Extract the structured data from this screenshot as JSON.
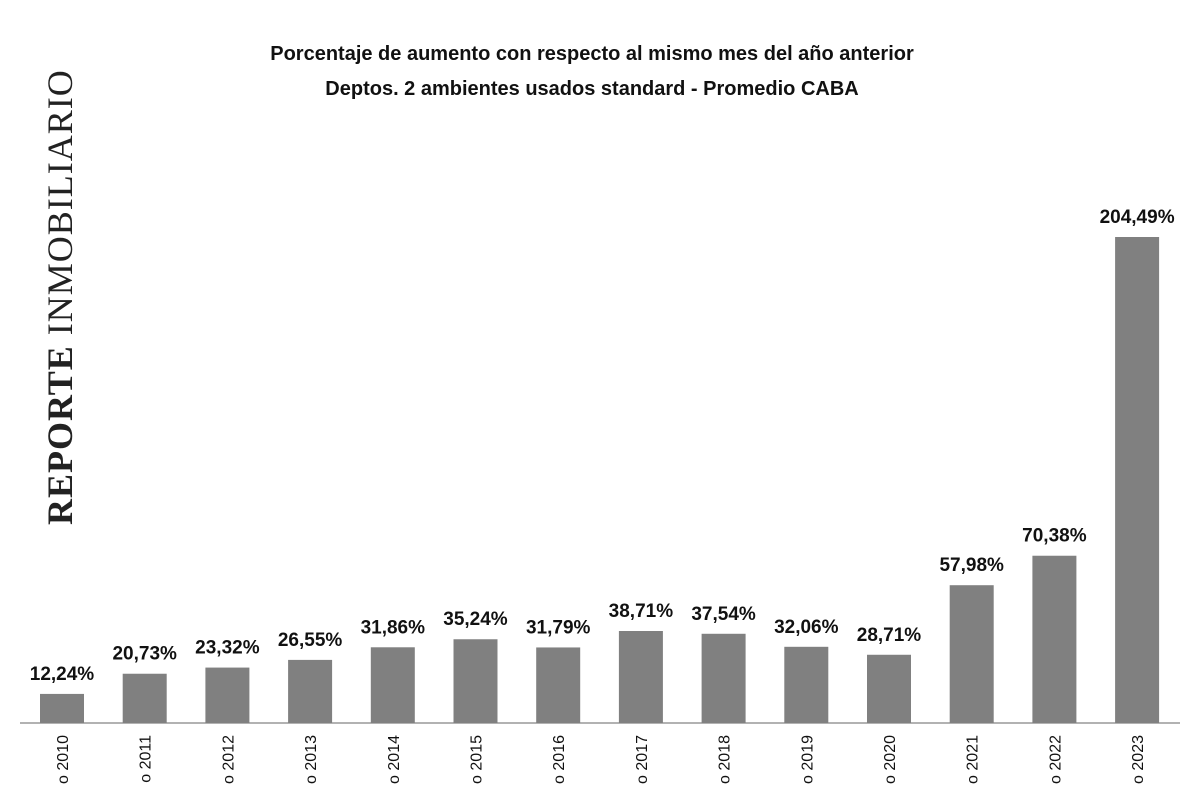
{
  "chart_data": {
    "type": "bar",
    "title": [
      "Porcentaje de aumento con respecto al mismo mes del año anterior",
      "Deptos. 2 ambientes usados standard - Promedio CABA"
    ],
    "watermark": [
      "REPORTE",
      "INMOBILIARIO"
    ],
    "categories": [
      "o 2010",
      "o 2011",
      "o 2012",
      "o 2013",
      "o 2014",
      "o 2015",
      "o 2016",
      "o 2017",
      "o 2018",
      "o 2019",
      "o 2020",
      "o 2021",
      "o 2022",
      "o 2023"
    ],
    "values": [
      12.24,
      20.73,
      23.32,
      26.55,
      31.86,
      35.24,
      31.79,
      38.71,
      37.54,
      32.06,
      28.71,
      57.98,
      70.38,
      204.49
    ],
    "value_labels": [
      "12,24%",
      "20,73%",
      "23,32%",
      "26,55%",
      "31,86%",
      "35,24%",
      "31,79%",
      "38,71%",
      "37,54%",
      "32,06%",
      "28,71%",
      "57,98%",
      "70,38%",
      "204,49%"
    ],
    "color": "#808080"
  }
}
